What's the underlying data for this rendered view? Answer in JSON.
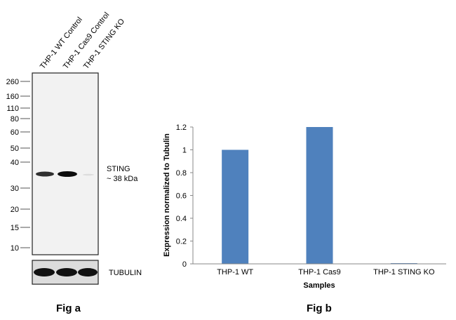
{
  "fig_a": {
    "caption": "Fig a",
    "lanes": [
      "THP-1 WT Control",
      "THP-1 Cas9 Control",
      "THP-1 STING KO"
    ],
    "mw_markers": [
      "260",
      "160",
      "110",
      "80",
      "60",
      "50",
      "40",
      "30",
      "20",
      "15",
      "10"
    ],
    "band_label": "STING",
    "band_size": "~ 38 kDa",
    "loading_control": "TUBULIN"
  },
  "fig_b": {
    "caption": "Fig b"
  },
  "chart_data": {
    "type": "bar",
    "categories": [
      "THP-1 WT",
      "THP-1 Cas9",
      "THP-1 STING KO"
    ],
    "values": [
      1.0,
      1.2,
      0.005
    ],
    "title": "",
    "xlabel": "Samples",
    "ylabel": "Expression  normalized to Tubulin",
    "ylim": [
      0,
      1.2
    ],
    "yticks": [
      "0",
      "0.2",
      "0.4",
      "0.6",
      "0.8",
      "1",
      "1.2"
    ],
    "bar_color": "#4f81bd",
    "grid": false,
    "legend": "none"
  }
}
